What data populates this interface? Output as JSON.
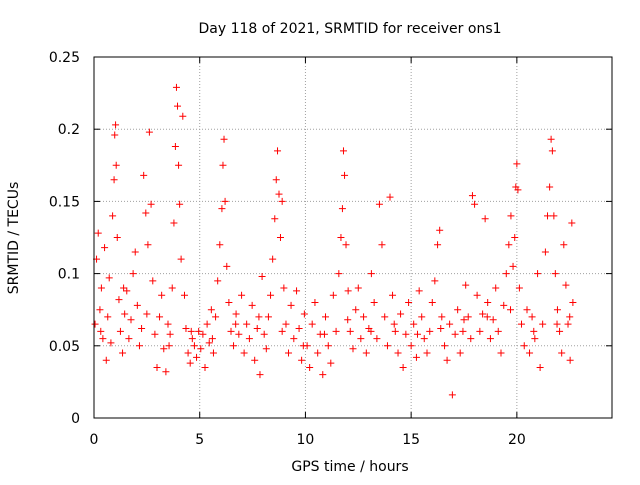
{
  "chart_data": {
    "type": "scatter",
    "title": "Day 118 of 2021, SRMTID for receiver ons1",
    "xlabel": "GPS time / hours",
    "ylabel": "SRMTID / TECUs",
    "xlim": [
      0,
      24.5
    ],
    "ylim": [
      0,
      0.25
    ],
    "xticks": [
      0,
      5,
      10,
      15,
      20
    ],
    "xtick_labels": [
      "0",
      "5",
      "10",
      "15",
      "20"
    ],
    "yticks": [
      0,
      0.05,
      0.1,
      0.15,
      0.2,
      0.25
    ],
    "ytick_labels": [
      "0",
      "0.05",
      "0.1",
      "0.15",
      "0.2",
      "0.25"
    ],
    "grid": true,
    "marker": "+",
    "color": "#ff0000",
    "series": [
      {
        "name": "SRMTID",
        "points": [
          [
            0.05,
            0.065
          ],
          [
            0.12,
            0.11
          ],
          [
            0.2,
            0.128
          ],
          [
            0.28,
            0.075
          ],
          [
            0.35,
            0.09
          ],
          [
            0.42,
            0.055
          ],
          [
            0.5,
            0.118
          ],
          [
            0.58,
            0.04
          ],
          [
            0.65,
            0.07
          ],
          [
            0.72,
            0.097
          ],
          [
            0.8,
            0.052
          ],
          [
            0.88,
            0.14
          ],
          [
            0.95,
            0.165
          ],
          [
            0.98,
            0.196
          ],
          [
            1.02,
            0.203
          ],
          [
            1.05,
            0.175
          ],
          [
            1.1,
            0.125
          ],
          [
            1.18,
            0.082
          ],
          [
            1.25,
            0.06
          ],
          [
            1.35,
            0.045
          ],
          [
            1.45,
            0.072
          ],
          [
            1.55,
            0.088
          ],
          [
            1.65,
            0.055
          ],
          [
            1.75,
            0.068
          ],
          [
            1.85,
            0.1
          ],
          [
            1.95,
            0.115
          ],
          [
            2.05,
            0.078
          ],
          [
            2.15,
            0.05
          ],
          [
            2.25,
            0.062
          ],
          [
            2.35,
            0.168
          ],
          [
            2.45,
            0.142
          ],
          [
            2.55,
            0.12
          ],
          [
            2.62,
            0.198
          ],
          [
            2.7,
            0.148
          ],
          [
            2.78,
            0.095
          ],
          [
            2.88,
            0.058
          ],
          [
            2.98,
            0.035
          ],
          [
            3.1,
            0.07
          ],
          [
            3.2,
            0.085
          ],
          [
            3.3,
            0.048
          ],
          [
            3.4,
            0.032
          ],
          [
            3.5,
            0.065
          ],
          [
            3.6,
            0.058
          ],
          [
            3.7,
            0.09
          ],
          [
            3.78,
            0.135
          ],
          [
            3.85,
            0.188
          ],
          [
            3.9,
            0.229
          ],
          [
            3.95,
            0.216
          ],
          [
            4.0,
            0.175
          ],
          [
            4.05,
            0.148
          ],
          [
            4.12,
            0.11
          ],
          [
            4.2,
            0.209
          ],
          [
            4.28,
            0.085
          ],
          [
            4.35,
            0.062
          ],
          [
            4.45,
            0.045
          ],
          [
            4.55,
            0.038
          ],
          [
            4.65,
            0.055
          ],
          [
            4.75,
            0.05
          ],
          [
            4.85,
            0.042
          ],
          [
            4.95,
            0.06
          ],
          [
            5.05,
            0.048
          ],
          [
            5.15,
            0.058
          ],
          [
            5.25,
            0.035
          ],
          [
            5.35,
            0.065
          ],
          [
            5.45,
            0.052
          ],
          [
            5.55,
            0.075
          ],
          [
            5.65,
            0.045
          ],
          [
            5.75,
            0.07
          ],
          [
            5.85,
            0.095
          ],
          [
            5.95,
            0.12
          ],
          [
            6.05,
            0.145
          ],
          [
            6.1,
            0.175
          ],
          [
            6.15,
            0.193
          ],
          [
            6.2,
            0.15
          ],
          [
            6.28,
            0.105
          ],
          [
            6.38,
            0.08
          ],
          [
            6.48,
            0.06
          ],
          [
            6.6,
            0.05
          ],
          [
            6.72,
            0.072
          ],
          [
            6.85,
            0.058
          ],
          [
            6.98,
            0.085
          ],
          [
            7.1,
            0.045
          ],
          [
            7.22,
            0.065
          ],
          [
            7.35,
            0.055
          ],
          [
            7.48,
            0.078
          ],
          [
            7.6,
            0.04
          ],
          [
            7.72,
            0.062
          ],
          [
            7.85,
            0.03
          ],
          [
            7.95,
            0.098
          ],
          [
            8.05,
            0.058
          ],
          [
            8.15,
            0.048
          ],
          [
            8.25,
            0.07
          ],
          [
            8.35,
            0.085
          ],
          [
            8.45,
            0.11
          ],
          [
            8.55,
            0.138
          ],
          [
            8.62,
            0.165
          ],
          [
            8.68,
            0.185
          ],
          [
            8.75,
            0.155
          ],
          [
            8.82,
            0.125
          ],
          [
            8.9,
            0.15
          ],
          [
            8.98,
            0.09
          ],
          [
            9.08,
            0.065
          ],
          [
            9.2,
            0.045
          ],
          [
            9.32,
            0.078
          ],
          [
            9.45,
            0.055
          ],
          [
            9.58,
            0.088
          ],
          [
            9.7,
            0.062
          ],
          [
            9.82,
            0.04
          ],
          [
            9.95,
            0.072
          ],
          [
            10.08,
            0.05
          ],
          [
            10.2,
            0.035
          ],
          [
            10.32,
            0.065
          ],
          [
            10.45,
            0.08
          ],
          [
            10.58,
            0.045
          ],
          [
            10.7,
            0.058
          ],
          [
            10.82,
            0.03
          ],
          [
            10.95,
            0.07
          ],
          [
            11.08,
            0.05
          ],
          [
            11.2,
            0.038
          ],
          [
            11.32,
            0.085
          ],
          [
            11.45,
            0.06
          ],
          [
            11.58,
            0.1
          ],
          [
            11.68,
            0.125
          ],
          [
            11.75,
            0.145
          ],
          [
            11.8,
            0.185
          ],
          [
            11.85,
            0.168
          ],
          [
            11.92,
            0.12
          ],
          [
            12.02,
            0.088
          ],
          [
            12.12,
            0.06
          ],
          [
            12.25,
            0.048
          ],
          [
            12.38,
            0.075
          ],
          [
            12.5,
            0.09
          ],
          [
            12.62,
            0.055
          ],
          [
            12.75,
            0.07
          ],
          [
            12.88,
            0.045
          ],
          [
            13.0,
            0.062
          ],
          [
            13.12,
            0.1
          ],
          [
            13.25,
            0.08
          ],
          [
            13.38,
            0.055
          ],
          [
            13.5,
            0.148
          ],
          [
            13.62,
            0.12
          ],
          [
            13.75,
            0.07
          ],
          [
            13.88,
            0.05
          ],
          [
            14.0,
            0.153
          ],
          [
            14.12,
            0.085
          ],
          [
            14.25,
            0.06
          ],
          [
            14.38,
            0.045
          ],
          [
            14.5,
            0.072
          ],
          [
            14.62,
            0.035
          ],
          [
            14.75,
            0.058
          ],
          [
            14.88,
            0.08
          ],
          [
            15.0,
            0.05
          ],
          [
            15.12,
            0.065
          ],
          [
            15.25,
            0.042
          ],
          [
            15.38,
            0.088
          ],
          [
            15.5,
            0.07
          ],
          [
            15.62,
            0.055
          ],
          [
            15.75,
            0.045
          ],
          [
            15.88,
            0.06
          ],
          [
            16.0,
            0.08
          ],
          [
            16.12,
            0.095
          ],
          [
            16.25,
            0.12
          ],
          [
            16.35,
            0.13
          ],
          [
            16.45,
            0.07
          ],
          [
            16.58,
            0.05
          ],
          [
            16.7,
            0.04
          ],
          [
            16.82,
            0.065
          ],
          [
            16.95,
            0.016
          ],
          [
            17.08,
            0.058
          ],
          [
            17.2,
            0.075
          ],
          [
            17.32,
            0.045
          ],
          [
            17.45,
            0.06
          ],
          [
            17.58,
            0.092
          ],
          [
            17.7,
            0.07
          ],
          [
            17.82,
            0.055
          ],
          [
            17.9,
            0.154
          ],
          [
            18.0,
            0.148
          ],
          [
            18.12,
            0.085
          ],
          [
            18.25,
            0.06
          ],
          [
            18.38,
            0.072
          ],
          [
            18.5,
            0.138
          ],
          [
            18.62,
            0.08
          ],
          [
            18.75,
            0.055
          ],
          [
            18.88,
            0.068
          ],
          [
            19.0,
            0.09
          ],
          [
            19.12,
            0.06
          ],
          [
            19.25,
            0.045
          ],
          [
            19.38,
            0.078
          ],
          [
            19.5,
            0.1
          ],
          [
            19.62,
            0.12
          ],
          [
            19.72,
            0.14
          ],
          [
            19.82,
            0.105
          ],
          [
            19.9,
            0.125
          ],
          [
            19.95,
            0.16
          ],
          [
            20.0,
            0.176
          ],
          [
            20.05,
            0.158
          ],
          [
            20.12,
            0.09
          ],
          [
            20.22,
            0.065
          ],
          [
            20.35,
            0.05
          ],
          [
            20.48,
            0.075
          ],
          [
            20.6,
            0.045
          ],
          [
            20.72,
            0.07
          ],
          [
            20.85,
            0.055
          ],
          [
            20.98,
            0.1
          ],
          [
            21.1,
            0.035
          ],
          [
            21.22,
            0.065
          ],
          [
            21.35,
            0.115
          ],
          [
            21.45,
            0.14
          ],
          [
            21.55,
            0.16
          ],
          [
            21.62,
            0.193
          ],
          [
            21.68,
            0.185
          ],
          [
            21.75,
            0.14
          ],
          [
            21.82,
            0.1
          ],
          [
            21.92,
            0.075
          ],
          [
            22.02,
            0.06
          ],
          [
            22.12,
            0.045
          ],
          [
            22.22,
            0.12
          ],
          [
            22.32,
            0.092
          ],
          [
            22.42,
            0.065
          ],
          [
            22.52,
            0.04
          ],
          [
            22.6,
            0.135
          ],
          [
            22.65,
            0.08
          ],
          [
            0.32,
            0.06
          ],
          [
            1.4,
            0.09
          ],
          [
            2.5,
            0.072
          ],
          [
            3.55,
            0.05
          ],
          [
            4.6,
            0.06
          ],
          [
            5.6,
            0.055
          ],
          [
            6.7,
            0.065
          ],
          [
            7.8,
            0.07
          ],
          [
            8.9,
            0.06
          ],
          [
            9.9,
            0.05
          ],
          [
            10.9,
            0.058
          ],
          [
            12.0,
            0.068
          ],
          [
            13.1,
            0.06
          ],
          [
            14.2,
            0.065
          ],
          [
            15.3,
            0.058
          ],
          [
            16.4,
            0.062
          ],
          [
            17.5,
            0.068
          ],
          [
            18.6,
            0.07
          ],
          [
            19.7,
            0.075
          ],
          [
            20.8,
            0.06
          ],
          [
            21.9,
            0.065
          ],
          [
            22.5,
            0.07
          ]
        ]
      }
    ]
  }
}
